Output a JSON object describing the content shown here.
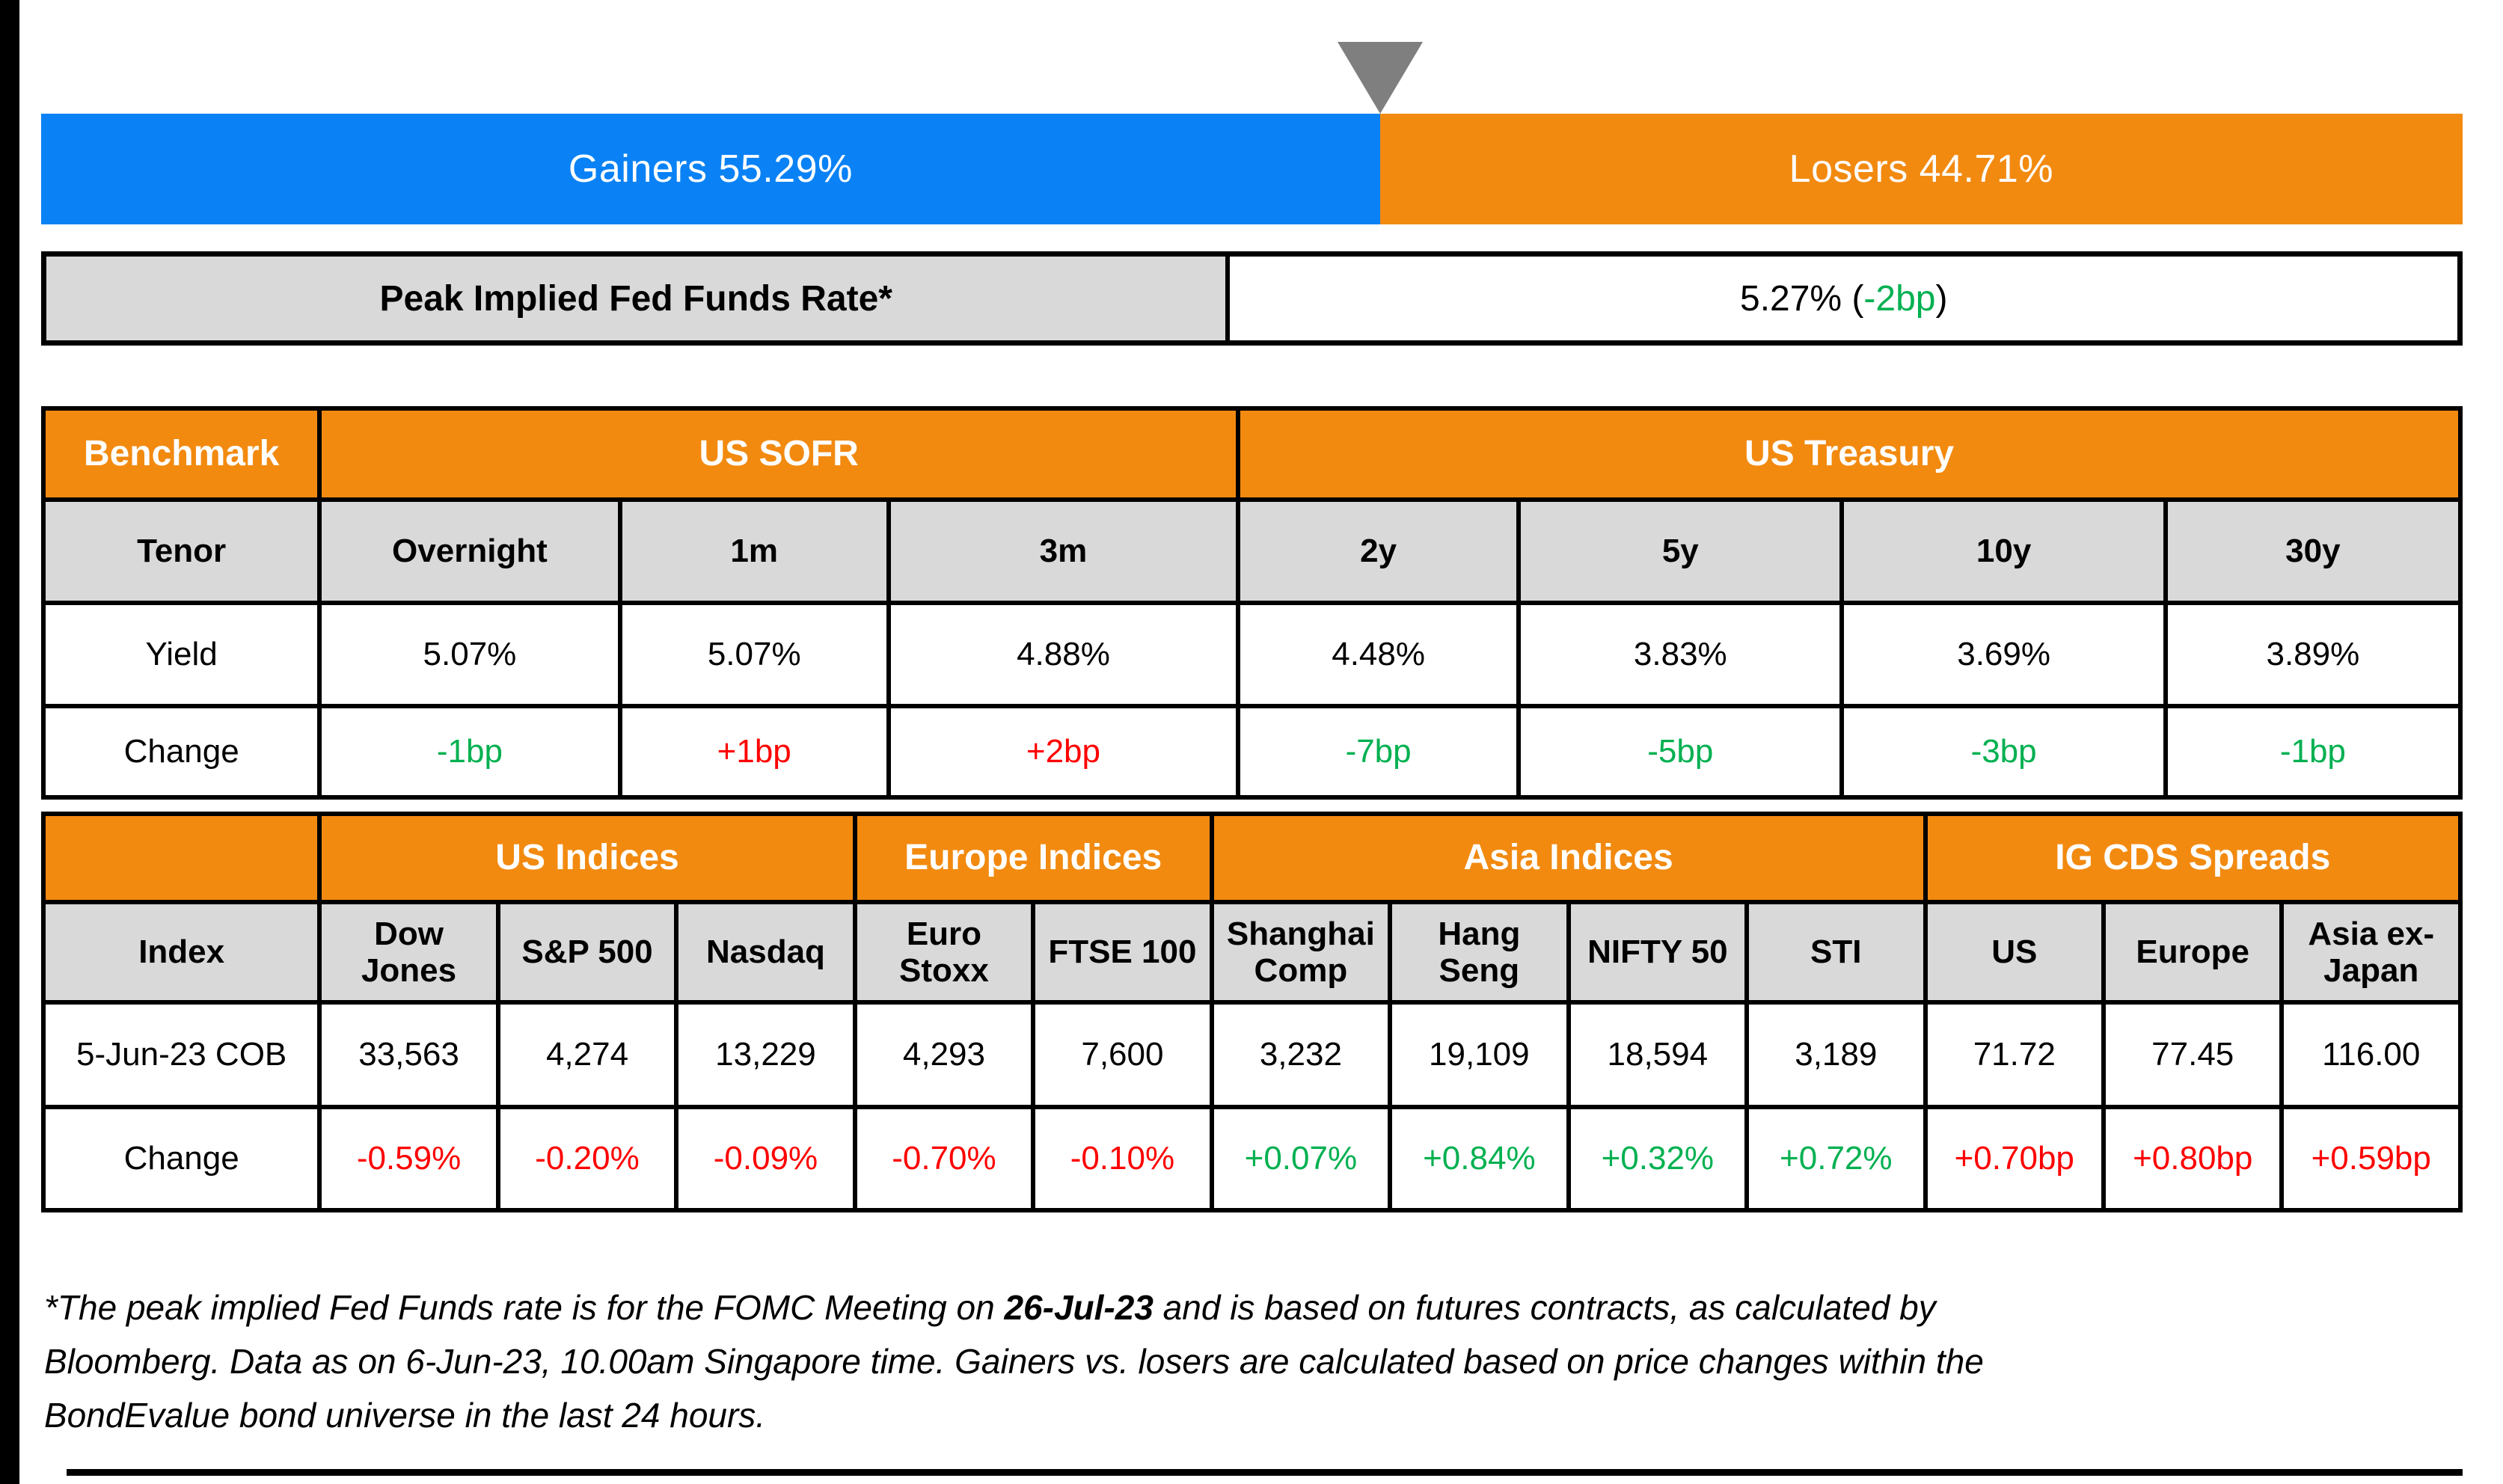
{
  "palette": {
    "gainers_blue": "#0A82F5",
    "losers_orange": "#F28A10",
    "header_orange": "#F28A10",
    "cell_gray": "#D9D9D9",
    "marker_gray": "#7F7F7F",
    "positive_green": "#00B050",
    "negative_red": "#FF0000"
  },
  "bar": {
    "gainers_label": "Gainers 55.29%",
    "losers_label": "Losers 44.71%",
    "gainers_pct": 55.29,
    "losers_pct": 44.71
  },
  "fed_funds": {
    "label": "Peak Implied Fed Funds Rate*",
    "value_prefix": "5.27% (",
    "change": "-2bp",
    "value_suffix": ")"
  },
  "benchmark_table": {
    "corner_label": "Benchmark",
    "groups": [
      {
        "label": "US SOFR",
        "span": 3
      },
      {
        "label": "US Treasury",
        "span": 4
      }
    ],
    "tenor_row_label": "Tenor",
    "yield_row_label": "Yield",
    "change_row_label": "Change",
    "columns": [
      {
        "tenor": "Overnight",
        "yield": "5.07%",
        "change": {
          "text": "-1bp",
          "cls": "green"
        }
      },
      {
        "tenor": "1m",
        "yield": "5.07%",
        "change": {
          "text": "+1bp",
          "cls": "red"
        }
      },
      {
        "tenor": "3m",
        "yield": "4.88%",
        "change": {
          "text": "+2bp",
          "cls": "red"
        }
      },
      {
        "tenor": "2y",
        "yield": "4.48%",
        "change": {
          "text": "-7bp",
          "cls": "green"
        }
      },
      {
        "tenor": "5y",
        "yield": "3.83%",
        "change": {
          "text": "-5bp",
          "cls": "green"
        }
      },
      {
        "tenor": "10y",
        "yield": "3.69%",
        "change": {
          "text": "-3bp",
          "cls": "green"
        }
      },
      {
        "tenor": "30y",
        "yield": "3.89%",
        "change": {
          "text": "-1bp",
          "cls": "green"
        }
      }
    ]
  },
  "indices_table": {
    "corner_label": "",
    "groups": [
      {
        "label": "US Indices",
        "span": 3
      },
      {
        "label": "Europe Indices",
        "span": 2
      },
      {
        "label": "Asia Indices",
        "span": 4
      },
      {
        "label": "IG CDS Spreads",
        "span": 3
      }
    ],
    "index_row_label": "Index",
    "date_row_label": "5-Jun-23 COB",
    "change_row_label": "Change",
    "columns": [
      {
        "name": "Dow\nJones",
        "value": "33,563",
        "change": {
          "text": "-0.59%",
          "cls": "red"
        }
      },
      {
        "name": "S&P 500",
        "value": "4,274",
        "change": {
          "text": "-0.20%",
          "cls": "red"
        }
      },
      {
        "name": "Nasdaq",
        "value": "13,229",
        "change": {
          "text": "-0.09%",
          "cls": "red"
        }
      },
      {
        "name": "Euro\nStoxx",
        "value": "4,293",
        "change": {
          "text": "-0.70%",
          "cls": "red"
        }
      },
      {
        "name": "FTSE 100",
        "value": "7,600",
        "change": {
          "text": "-0.10%",
          "cls": "red"
        }
      },
      {
        "name": "Shanghai\nComp",
        "value": "3,232",
        "change": {
          "text": "+0.07%",
          "cls": "green"
        }
      },
      {
        "name": "Hang\nSeng",
        "value": "19,109",
        "change": {
          "text": "+0.84%",
          "cls": "green"
        }
      },
      {
        "name": "NIFTY 50",
        "value": "18,594",
        "change": {
          "text": "+0.32%",
          "cls": "green"
        }
      },
      {
        "name": "STI",
        "value": "3,189",
        "change": {
          "text": "+0.72%",
          "cls": "green"
        }
      },
      {
        "name": "US",
        "value": "71.72",
        "change": {
          "text": "+0.70bp",
          "cls": "red"
        }
      },
      {
        "name": "Europe",
        "value": "77.45",
        "change": {
          "text": "+0.80bp",
          "cls": "red"
        }
      },
      {
        "name": "Asia ex-\nJapan",
        "value": "116.00",
        "change": {
          "text": "+0.59bp",
          "cls": "red"
        }
      }
    ]
  },
  "footnote": {
    "lines": [
      {
        "pre": "*The peak implied Fed Funds rate is for the FOMC Meeting on ",
        "bold": "26-Jul-23",
        "post": " and is based on futures contracts, as calculated by"
      },
      {
        "pre": "Bloomberg. Data as on 6-Jun-23, 10.00am Singapore time. Gainers vs. losers are calculated based on price changes within the"
      },
      {
        "pre": "BondEvalue bond universe in the last 24 hours."
      }
    ]
  },
  "chart_data": [
    {
      "type": "bar",
      "title": "Gainers vs Losers",
      "categories": [
        "BondEvalue bond universe (last 24 hours)"
      ],
      "series": [
        {
          "name": "Gainers",
          "values": [
            55.29
          ]
        },
        {
          "name": "Losers",
          "values": [
            44.71
          ]
        }
      ],
      "stacked": true,
      "orientation": "horizontal",
      "unit": "%",
      "legend_position": "inside-bar",
      "colors": {
        "Gainers": "#0A82F5",
        "Losers": "#F28A10"
      }
    },
    {
      "type": "table",
      "title": "Benchmark",
      "column_groups": [
        {
          "label": "US SOFR",
          "columns": [
            "Overnight",
            "1m",
            "3m"
          ]
        },
        {
          "label": "US Treasury",
          "columns": [
            "2y",
            "5y",
            "10y",
            "30y"
          ]
        }
      ],
      "columns": [
        "Overnight",
        "1m",
        "3m",
        "2y",
        "5y",
        "10y",
        "30y"
      ],
      "rows": [
        {
          "label": "Yield",
          "values": [
            "5.07%",
            "5.07%",
            "4.88%",
            "4.48%",
            "3.83%",
            "3.69%",
            "3.89%"
          ]
        },
        {
          "label": "Change",
          "values": [
            "-1bp",
            "+1bp",
            "+2bp",
            "-7bp",
            "-5bp",
            "-3bp",
            "-1bp"
          ]
        }
      ]
    },
    {
      "type": "table",
      "title": "Indices and IG CDS Spreads",
      "column_groups": [
        {
          "label": "US Indices",
          "columns": [
            "Dow Jones",
            "S&P 500",
            "Nasdaq"
          ]
        },
        {
          "label": "Europe Indices",
          "columns": [
            "Euro Stoxx",
            "FTSE 100"
          ]
        },
        {
          "label": "Asia Indices",
          "columns": [
            "Shanghai Comp",
            "Hang Seng",
            "NIFTY 50",
            "STI"
          ]
        },
        {
          "label": "IG CDS Spreads",
          "columns": [
            "US",
            "Europe",
            "Asia ex-Japan"
          ]
        }
      ],
      "columns": [
        "Dow Jones",
        "S&P 500",
        "Nasdaq",
        "Euro Stoxx",
        "FTSE 100",
        "Shanghai Comp",
        "Hang Seng",
        "NIFTY 50",
        "STI",
        "US",
        "Europe",
        "Asia ex-Japan"
      ],
      "rows": [
        {
          "label": "5-Jun-23 COB",
          "values": [
            "33,563",
            "4,274",
            "13,229",
            "4,293",
            "7,600",
            "3,232",
            "19,109",
            "18,594",
            "3,189",
            "71.72",
            "77.45",
            "116.00"
          ]
        },
        {
          "label": "Change",
          "values": [
            "-0.59%",
            "-0.20%",
            "-0.09%",
            "-0.70%",
            "-0.10%",
            "+0.07%",
            "+0.84%",
            "+0.32%",
            "+0.72%",
            "+0.70bp",
            "+0.80bp",
            "+0.59bp"
          ]
        }
      ]
    },
    {
      "type": "table",
      "title": "Peak Implied Fed Funds Rate*",
      "columns": [
        "Value",
        "Change"
      ],
      "rows": [
        {
          "label": "Peak Implied Fed Funds Rate*",
          "values": [
            "5.27%",
            "-2bp"
          ]
        }
      ]
    }
  ]
}
